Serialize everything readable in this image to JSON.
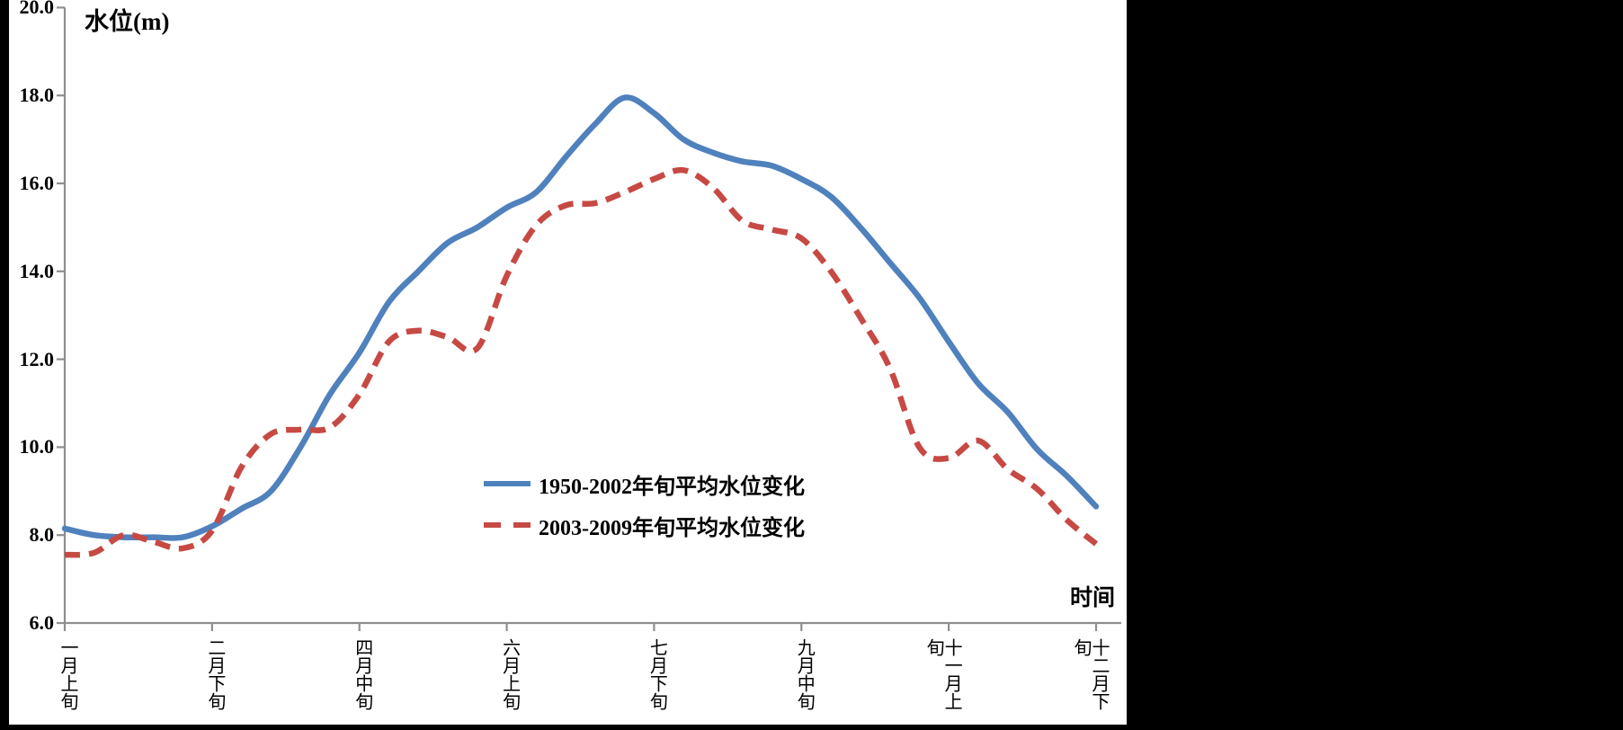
{
  "chart_data": {
    "type": "line",
    "title": "",
    "ylabel": "水位(m)",
    "xlabel": "时间",
    "ylim": [
      6.0,
      20.0
    ],
    "y_ticks": [
      "20.0",
      "18.0",
      "16.0",
      "14.0",
      "12.0",
      "10.0",
      "8.0",
      "6.0"
    ],
    "x_tick_labels": [
      "一月上旬",
      "二月下旬",
      "四月中旬",
      "六月上旬",
      "七月下旬",
      "九月中旬",
      "十一月上旬",
      "十二月下旬"
    ],
    "x_tick_periods": [
      1,
      6,
      11,
      16,
      21,
      26,
      31,
      36
    ],
    "n_periods": 36,
    "grid": "off",
    "legend_position": "inside-lower-center",
    "series": [
      {
        "name": "1950-2002年旬平均水位变化",
        "color": "#4F81BD",
        "style": "solid",
        "values": [
          8.15,
          8.0,
          7.95,
          7.95,
          7.95,
          8.2,
          8.6,
          9.0,
          10.0,
          11.2,
          12.15,
          13.3,
          14.0,
          14.65,
          15.0,
          15.45,
          15.8,
          16.6,
          17.35,
          17.95,
          17.6,
          17.0,
          16.7,
          16.5,
          16.4,
          16.1,
          15.7,
          15.0,
          14.2,
          13.4,
          12.4,
          11.45,
          10.8,
          9.95,
          9.35,
          8.65
        ]
      },
      {
        "name": "2003-2009年旬平均水位变化",
        "color": "#C64944",
        "style": "dashed",
        "values": [
          7.55,
          7.6,
          8.0,
          7.85,
          7.7,
          8.1,
          9.55,
          10.3,
          10.4,
          10.45,
          11.2,
          12.4,
          12.65,
          12.5,
          12.25,
          13.9,
          15.05,
          15.5,
          15.55,
          15.8,
          16.1,
          16.3,
          15.9,
          15.15,
          14.95,
          14.75,
          14.0,
          12.95,
          11.8,
          10.0,
          9.75,
          10.15,
          9.5,
          9.05,
          8.35,
          7.8
        ]
      }
    ],
    "axis_color": "#8E8E8E"
  }
}
